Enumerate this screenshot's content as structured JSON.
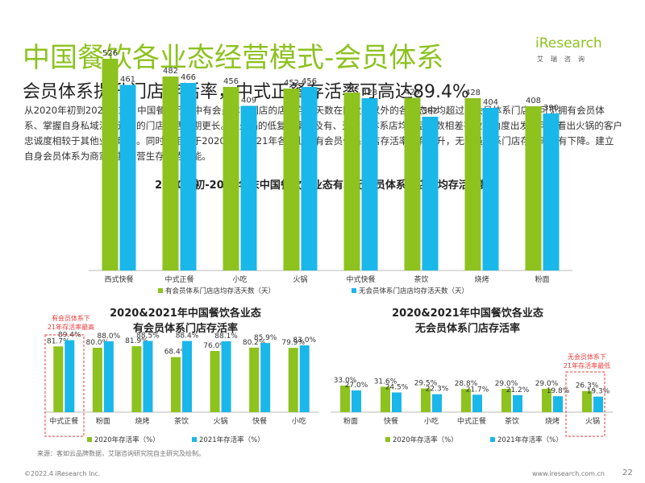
{
  "header": {
    "title": "中国餐饮各业态经营模式-会员体系",
    "subtitle": "会员体系提升门店存活率，中式正餐存活率可高达89.4%",
    "description": "从2020年初到2021年末，中国餐饮行业中有会员体系门店的店均存活天数在除火锅以外的各业态中均超过无会员体系门店，可见拥有会员体系、掌握自身私域流量运营的门店存活周期更长。从火锅的低复购率以及有、无会员体系店均存活天数相差甚微的角度出发，可以看出火锅的客户忠诚度相较于其他业态略低。同时，相较于2020年，2021年各个业态有会员体系门店存活率皆有提升，无会员体系门店存活率皆有下降。建立自身会员体系为商家长期运营生存优势赋能。"
  },
  "logo": {
    "brand": "iResearch",
    "sub": "艾瑞咨询"
  },
  "colors": {
    "accent": "#8dc21f",
    "green": "#8dc21f",
    "blue": "#1ab7ea",
    "callout": "#e83a3a"
  },
  "chart_data": [
    {
      "type": "bar",
      "title": "2020年初-2021年末中国餐饮各业态有、无会员体系门店店均存活天数",
      "categories": [
        "西式快餐",
        "中式正餐",
        "小吃",
        "火锅",
        "中式快餐",
        "茶饮",
        "烧烤",
        "粉面"
      ],
      "series": [
        {
          "name": "有会员体系门店店均存活天数（天）",
          "values": [
            526,
            482,
            456,
            452,
            442,
            429,
            428,
            408
          ],
          "labels": [
            "526",
            "482",
            "456",
            "452",
            "442",
            "429",
            "428",
            "408"
          ]
        },
        {
          "name": "无会员体系门店店均存活天数（天）",
          "values": [
            461,
            466,
            409,
            456,
            428,
            382,
            404,
            390
          ],
          "labels": [
            "461",
            "466",
            "409",
            "456",
            "428",
            "382",
            "404",
            "390"
          ]
        }
      ],
      "ylim": [
        0,
        600
      ],
      "legend": "bottom"
    },
    {
      "type": "bar",
      "title_line1": "2020&2021年中国餐饮各业态",
      "title_line2": "有会员体系门店存活率",
      "categories": [
        "中式正餐",
        "粉面",
        "烧烤",
        "茶饮",
        "火锅",
        "快餐",
        "小吃"
      ],
      "series": [
        {
          "name": "2020年存活率（%）",
          "values": [
            81.7,
            80.0,
            81.9,
            68.4,
            76.0,
            80.2,
            79.9
          ],
          "labels": [
            "81.7%",
            "80.0%",
            "81.9%",
            "68.4%",
            "76.0%",
            "80.2%",
            "79.9%"
          ]
        },
        {
          "name": "2021年存活率（%）",
          "values": [
            89.4,
            88.0,
            88.5,
            88.4,
            88.1,
            85.9,
            83.0
          ],
          "labels": [
            "89.4%",
            "88.0%",
            "88.5%",
            "88.4%",
            "88.1%",
            "85.9%",
            "83.0%"
          ]
        }
      ],
      "ylim": [
        0,
        100
      ],
      "legend": "bottom",
      "callout": [
        "有会员体系下",
        "21年存活率最高"
      ]
    },
    {
      "type": "bar",
      "title_line1": "2020&2021年中国餐饮各业态",
      "title_line2": "无会员体系门店存活率",
      "categories": [
        "粉面",
        "快餐",
        "小吃",
        "中式正餐",
        "茶饮",
        "烧烤",
        "火锅"
      ],
      "series": [
        {
          "name": "2020年存活率（%）",
          "values": [
            33.0,
            31.6,
            29.5,
            28.8,
            29.0,
            29.0,
            26.3
          ],
          "labels": [
            "33.0%",
            "31.6%",
            "29.5%",
            "28.8%",
            "29.0%",
            "29.0%",
            "26.3%"
          ]
        },
        {
          "name": "2021年存活率（%）",
          "values": [
            27.0,
            24.5,
            22.3,
            21.7,
            21.2,
            19.8,
            19.3
          ],
          "labels": [
            "27.0%",
            "24.5%",
            "22.3%",
            "21.7%",
            "21.2%",
            "19.8%",
            "19.3%"
          ]
        }
      ],
      "ylim": [
        0,
        100
      ],
      "legend": "bottom",
      "callout": [
        "无会员体系下",
        "21年存活率最低"
      ]
    }
  ],
  "footer": {
    "source": "来源：客如云品牌数据，艾瑞咨询研究院自主研究及绘制。",
    "copyright": "©2022.4 iResearch Inc.",
    "url": "www.iresearch.com.cn",
    "page": "22"
  }
}
